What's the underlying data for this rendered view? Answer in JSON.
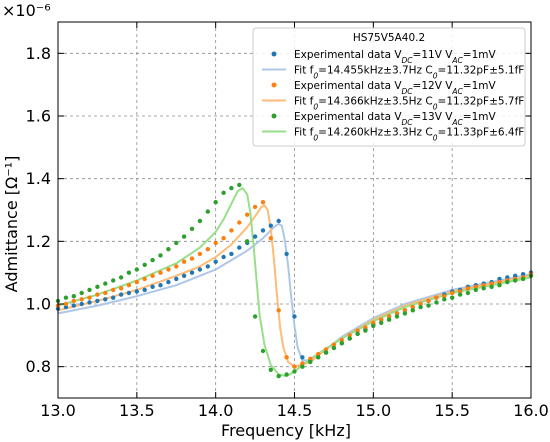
{
  "chart_data": {
    "type": "scatter",
    "xlabel": "Frequency [kHz]",
    "ylabel": "Admittance [Ω⁻¹]",
    "offset_text": "×10⁻⁶",
    "xlim": [
      13.0,
      16.0
    ],
    "ylim": [
      0.7,
      1.9
    ],
    "xticks": [
      13.0,
      13.5,
      14.0,
      14.5,
      15.0,
      15.5,
      16.0
    ],
    "yticks": [
      0.8,
      1.0,
      1.2,
      1.4,
      1.6,
      1.8
    ],
    "xtick_labels": [
      "13.0",
      "13.5",
      "14.0",
      "14.5",
      "15.0",
      "15.5",
      "16.0"
    ],
    "ytick_labels": [
      "0.8",
      "1.0",
      "1.2",
      "1.4",
      "1.6",
      "1.8"
    ],
    "grid": true,
    "legend_position": "top-right",
    "legend": {
      "title": "HS75V5A40.2",
      "entries": [
        {
          "pre": "Experimental data V",
          "sub1": "DC",
          "mid": "=11V V",
          "sub2": "AC",
          "post": "=1mV",
          "kind": "marker",
          "color": "#1f77b4"
        },
        {
          "pre": "Fit f",
          "sub1": "0",
          "mid": "=14.455kHz±3.7Hz C",
          "sub2": "0",
          "post": "=11.32pF±5.1fF",
          "kind": "line",
          "color": "#aec7e8"
        },
        {
          "pre": "Experimental data V",
          "sub1": "DC",
          "mid": "=12V V",
          "sub2": "AC",
          "post": "=1mV",
          "kind": "marker",
          "color": "#ff7f0e"
        },
        {
          "pre": "Fit f",
          "sub1": "0",
          "mid": "=14.366kHz±3.5Hz C",
          "sub2": "0",
          "post": "=11.32pF±5.7fF",
          "kind": "line",
          "color": "#ffbb78"
        },
        {
          "pre": "Experimental data V",
          "sub1": "DC",
          "mid": "=13V V",
          "sub2": "AC",
          "post": "=1mV",
          "kind": "marker",
          "color": "#2ca02c"
        },
        {
          "pre": "Fit f",
          "sub1": "0",
          "mid": "=14.260kHz±3.3Hz C",
          "sub2": "0",
          "post": "=11.33pF±6.4fF",
          "kind": "line",
          "color": "#98df8a"
        }
      ]
    },
    "fits": [
      {
        "color": "#aec7e8",
        "x": [
          13.0,
          13.25,
          13.5,
          13.75,
          13.9,
          14.0,
          14.1,
          14.2,
          14.3,
          14.35,
          14.38,
          14.4,
          14.42,
          14.44,
          14.46,
          14.48,
          14.5,
          14.52,
          14.55,
          14.6,
          14.7,
          14.8,
          15.0,
          15.2,
          15.5,
          15.8,
          16.0
        ],
        "y": [
          0.97,
          0.995,
          1.025,
          1.06,
          1.09,
          1.11,
          1.14,
          1.17,
          1.21,
          1.235,
          1.25,
          1.255,
          1.25,
          1.2,
          1.12,
          1.02,
          0.93,
          0.86,
          0.82,
          0.82,
          0.855,
          0.895,
          0.955,
          1.0,
          1.045,
          1.075,
          1.095
        ]
      },
      {
        "color": "#ffbb78",
        "x": [
          13.0,
          13.25,
          13.5,
          13.75,
          13.9,
          14.0,
          14.1,
          14.2,
          14.25,
          14.29,
          14.31,
          14.33,
          14.35,
          14.37,
          14.39,
          14.41,
          14.43,
          14.46,
          14.5,
          14.6,
          14.7,
          14.8,
          15.0,
          15.2,
          15.5,
          15.8,
          16.0
        ],
        "y": [
          0.98,
          1.01,
          1.045,
          1.09,
          1.12,
          1.15,
          1.19,
          1.245,
          1.28,
          1.31,
          1.315,
          1.3,
          1.24,
          1.14,
          1.02,
          0.92,
          0.86,
          0.815,
          0.8,
          0.815,
          0.855,
          0.89,
          0.95,
          0.995,
          1.04,
          1.07,
          1.09
        ]
      },
      {
        "color": "#98df8a",
        "x": [
          13.0,
          13.25,
          13.5,
          13.75,
          13.9,
          14.0,
          14.05,
          14.1,
          14.14,
          14.17,
          14.2,
          14.22,
          14.24,
          14.26,
          14.28,
          14.31,
          14.35,
          14.4,
          14.45,
          14.5,
          14.6,
          14.8,
          15.0,
          15.2,
          15.5,
          15.8,
          16.0
        ],
        "y": [
          0.995,
          1.03,
          1.075,
          1.13,
          1.18,
          1.23,
          1.27,
          1.32,
          1.36,
          1.37,
          1.35,
          1.29,
          1.19,
          1.07,
          0.96,
          0.87,
          0.805,
          0.775,
          0.77,
          0.785,
          0.825,
          0.89,
          0.945,
          0.99,
          1.035,
          1.065,
          1.085
        ]
      }
    ],
    "series": [
      {
        "color": "#1f77b4",
        "x": [
          13.0,
          13.05,
          13.1,
          13.15,
          13.2,
          13.25,
          13.3,
          13.35,
          13.4,
          13.45,
          13.5,
          13.55,
          13.6,
          13.65,
          13.7,
          13.75,
          13.8,
          13.85,
          13.9,
          13.95,
          14.0,
          14.05,
          14.1,
          14.15,
          14.2,
          14.25,
          14.3,
          14.35,
          14.4,
          14.45,
          14.5,
          14.55,
          14.6,
          14.65,
          14.7,
          14.75,
          14.8,
          14.85,
          14.9,
          14.95,
          15.0,
          15.05,
          15.1,
          15.15,
          15.2,
          15.25,
          15.3,
          15.35,
          15.4,
          15.45,
          15.5,
          15.55,
          15.6,
          15.65,
          15.7,
          15.75,
          15.8,
          15.85,
          15.9,
          15.95,
          16.0
        ],
        "y": [
          0.985,
          0.99,
          0.995,
          1.0,
          1.005,
          1.01,
          1.015,
          1.02,
          1.03,
          1.035,
          1.04,
          1.045,
          1.055,
          1.06,
          1.07,
          1.08,
          1.09,
          1.1,
          1.11,
          1.12,
          1.135,
          1.15,
          1.16,
          1.18,
          1.195,
          1.215,
          1.235,
          1.25,
          1.265,
          1.16,
          0.96,
          0.83,
          0.82,
          0.83,
          0.845,
          0.86,
          0.875,
          0.89,
          0.905,
          0.92,
          0.935,
          0.95,
          0.96,
          0.97,
          0.98,
          0.99,
          1.0,
          1.01,
          1.02,
          1.03,
          1.04,
          1.045,
          1.055,
          1.06,
          1.065,
          1.07,
          1.08,
          1.085,
          1.09,
          1.095,
          1.1
        ]
      },
      {
        "color": "#ff7f0e",
        "x": [
          13.0,
          13.05,
          13.1,
          13.15,
          13.2,
          13.25,
          13.3,
          13.35,
          13.4,
          13.45,
          13.5,
          13.55,
          13.6,
          13.65,
          13.7,
          13.75,
          13.8,
          13.85,
          13.9,
          13.95,
          14.0,
          14.05,
          14.1,
          14.15,
          14.2,
          14.25,
          14.3,
          14.35,
          14.4,
          14.45,
          14.5,
          14.55,
          14.6,
          14.65,
          14.7,
          14.75,
          14.8,
          14.85,
          14.9,
          14.95,
          15.0,
          15.05,
          15.1,
          15.15,
          15.2,
          15.25,
          15.3,
          15.35,
          15.4,
          15.45,
          15.5,
          15.55,
          15.6,
          15.65,
          15.7,
          15.75,
          15.8,
          15.85,
          15.9,
          15.95,
          16.0
        ],
        "y": [
          0.995,
          1.0,
          1.01,
          1.015,
          1.02,
          1.03,
          1.035,
          1.045,
          1.05,
          1.06,
          1.07,
          1.08,
          1.09,
          1.1,
          1.11,
          1.12,
          1.135,
          1.145,
          1.16,
          1.175,
          1.195,
          1.21,
          1.235,
          1.26,
          1.285,
          1.31,
          1.325,
          1.21,
          0.98,
          0.83,
          0.8,
          0.81,
          0.825,
          0.84,
          0.855,
          0.87,
          0.885,
          0.9,
          0.915,
          0.925,
          0.94,
          0.95,
          0.96,
          0.97,
          0.98,
          0.99,
          1.0,
          1.01,
          1.02,
          1.025,
          1.035,
          1.04,
          1.05,
          1.055,
          1.06,
          1.065,
          1.07,
          1.075,
          1.08,
          1.085,
          1.095
        ]
      },
      {
        "color": "#2ca02c",
        "x": [
          13.0,
          13.05,
          13.1,
          13.15,
          13.2,
          13.25,
          13.3,
          13.35,
          13.4,
          13.45,
          13.5,
          13.55,
          13.6,
          13.65,
          13.7,
          13.75,
          13.8,
          13.85,
          13.9,
          13.95,
          14.0,
          14.05,
          14.1,
          14.15,
          14.2,
          14.25,
          14.3,
          14.35,
          14.4,
          14.45,
          14.5,
          14.55,
          14.6,
          14.65,
          14.7,
          14.75,
          14.8,
          14.85,
          14.9,
          14.95,
          15.0,
          15.05,
          15.1,
          15.15,
          15.2,
          15.25,
          15.3,
          15.35,
          15.4,
          15.45,
          15.5,
          15.55,
          15.6,
          15.65,
          15.7,
          15.75,
          15.8,
          15.85,
          15.9,
          15.95,
          16.0
        ],
        "y": [
          1.01,
          1.02,
          1.025,
          1.035,
          1.045,
          1.055,
          1.065,
          1.075,
          1.085,
          1.1,
          1.11,
          1.125,
          1.14,
          1.155,
          1.175,
          1.195,
          1.215,
          1.24,
          1.265,
          1.295,
          1.325,
          1.355,
          1.37,
          1.38,
          1.2,
          0.96,
          0.85,
          0.79,
          0.77,
          0.775,
          0.785,
          0.8,
          0.815,
          0.83,
          0.845,
          0.86,
          0.875,
          0.89,
          0.905,
          0.915,
          0.93,
          0.94,
          0.95,
          0.96,
          0.97,
          0.98,
          0.99,
          0.995,
          1.005,
          1.015,
          1.02,
          1.03,
          1.035,
          1.045,
          1.05,
          1.055,
          1.06,
          1.07,
          1.075,
          1.08,
          1.09
        ]
      }
    ]
  }
}
